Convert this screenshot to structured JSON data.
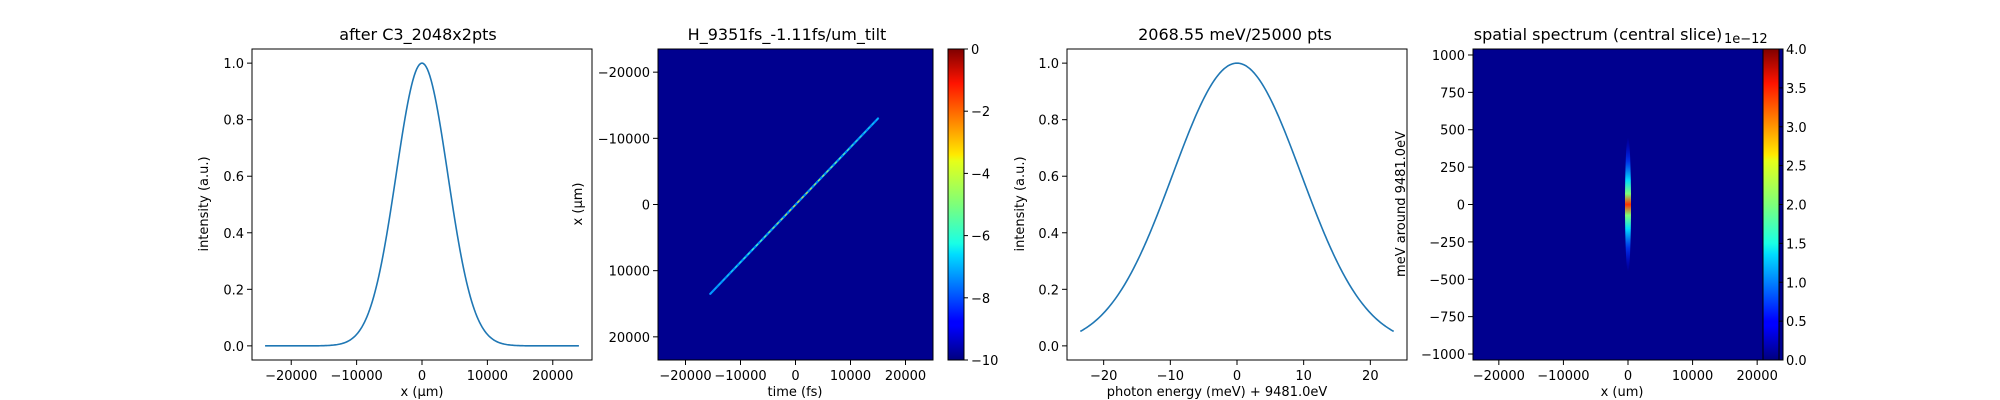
{
  "chart_data": [
    {
      "type": "line",
      "title": "after C3_2048x2pts",
      "xlabel": "x ($\\mu$m)",
      "xlabel_display": "x (μm)",
      "ylabel": "intensity (a.u.)",
      "xlim": [
        -26000,
        26000
      ],
      "ylim": [
        -0.05,
        1.05
      ],
      "xticks": [
        -20000,
        -10000,
        0,
        10000,
        20000
      ],
      "yticks": [
        0.0,
        0.2,
        0.4,
        0.6,
        0.8,
        1.0
      ],
      "ytick_labels": [
        "0.0",
        "0.2",
        "0.4",
        "0.6",
        "0.8",
        "1.0"
      ],
      "series": [
        {
          "color": "#1f77b4",
          "shape": "gaussian",
          "x_range": [
            -24000,
            24000
          ],
          "center": 0,
          "fwhm": 9300,
          "amplitude": 1.0
        }
      ]
    },
    {
      "type": "heatmap",
      "title": "H_9351fs_-1.11fs/um_tilt",
      "xlabel": "time (fs)",
      "ylabel": "x ($\\mu$m)",
      "ylabel_display": "x (μm)",
      "xlim": [
        -25000,
        25000
      ],
      "ylim": [
        23500,
        -23500
      ],
      "xticks": [
        -20000,
        -10000,
        0,
        10000,
        20000
      ],
      "yticks": [
        -20000,
        -10000,
        0,
        10000,
        20000
      ],
      "background_value": -10,
      "feature": {
        "description_type": "tilted line",
        "start": [
          -15500,
          13500
        ],
        "end": [
          15000,
          -13000
        ]
      },
      "colorbar": {
        "min": -10,
        "max": 0,
        "ticks": [
          0,
          -2,
          -4,
          -6,
          -8,
          -10
        ],
        "colormap": "jet"
      }
    },
    {
      "type": "line",
      "title": "2068.55 meV/25000 pts",
      "xlabel": "photon energy (meV) + 9481.0eV",
      "ylabel": "intensity (a.u.)",
      "xlim": [
        -25.5,
        25.5
      ],
      "ylim": [
        -0.05,
        1.05
      ],
      "xticks": [
        -20,
        -10,
        0,
        10,
        20
      ],
      "yticks": [
        0.0,
        0.2,
        0.4,
        0.6,
        0.8,
        1.0
      ],
      "ytick_labels": [
        "0.0",
        "0.2",
        "0.4",
        "0.6",
        "0.8",
        "1.0"
      ],
      "series": [
        {
          "color": "#1f77b4",
          "shape": "gaussian",
          "x_range": [
            -23.5,
            23.5
          ],
          "center": 0,
          "fwhm": 22.7,
          "amplitude": 1.0
        }
      ]
    },
    {
      "type": "heatmap",
      "title": "spatial spectrum (central slice)",
      "xlabel": "x (um)",
      "ylabel": "meV around 9481.0eV",
      "xlim": [
        -24000,
        24000
      ],
      "ylim": [
        -1040,
        1040
      ],
      "xticks": [
        -20000,
        -10000,
        0,
        10000,
        20000
      ],
      "yticks": [
        -1000,
        -750,
        -500,
        -250,
        0,
        250,
        500,
        750,
        1000
      ],
      "background_value": 0,
      "feature": {
        "description_type": "narrow vertical streak",
        "center_x": 0,
        "half_height": 450,
        "peak": 4.0
      },
      "colorbar": {
        "min": 0,
        "max": 4.0,
        "ticks": [
          0.0,
          0.5,
          1.0,
          1.5,
          2.0,
          2.5,
          3.0,
          3.5,
          4.0
        ],
        "tick_labels": [
          "0.0",
          "0.5",
          "1.0",
          "1.5",
          "2.0",
          "2.5",
          "3.0",
          "3.5",
          "4.0"
        ],
        "offset_text": "1e−12",
        "colormap": "jet"
      }
    }
  ]
}
